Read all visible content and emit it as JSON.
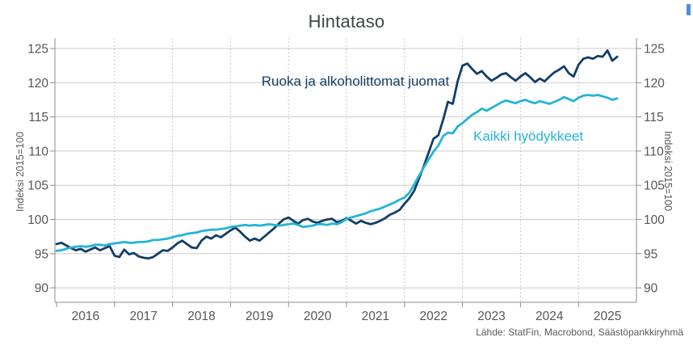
{
  "title": "Hintataso",
  "source": "Lähde: StatFin, Macrobond, Säästöpankkiryhmä",
  "y_axis_left_label": "Indeksi 2015=100",
  "y_axis_right_label": "Indeksi 2015=100",
  "colors": {
    "food_series": "#133e66",
    "all_items_series": "#24b3d6",
    "title_text": "#3f464d",
    "tick_label": "#565656",
    "axis_line": "#8c8c8c",
    "grid_horizontal": "#cbcbcb",
    "grid_vertical": "#b4b4b4",
    "edge_artifact": "#4b8fd9"
  },
  "chart_data": {
    "type": "line",
    "title": "Hintataso",
    "xlabel": "",
    "ylabel": "Indeksi 2015=100",
    "ylim": [
      87.5,
      126.5
    ],
    "y_ticks": [
      90,
      95,
      100,
      105,
      110,
      115,
      120,
      125
    ],
    "x_years": [
      2016,
      2017,
      2018,
      2019,
      2020,
      2021,
      2022,
      2023,
      2024,
      2025
    ],
    "x_start": "2016-01",
    "frequency": "monthly",
    "grid": {
      "horizontal": "solid",
      "vertical": "dotted"
    },
    "legend_position": "inline-annotations",
    "source": "Lähde: StatFin, Macrobond, Säästöpankkiryhmä",
    "series": [
      {
        "name": "Ruoka ja alkoholittomat juomat",
        "color": "#133e66",
        "values": [
          96.4,
          96.6,
          96.2,
          95.8,
          95.5,
          95.7,
          95.3,
          95.6,
          95.9,
          95.5,
          95.8,
          96.1,
          94.7,
          94.5,
          95.6,
          94.9,
          95.1,
          94.6,
          94.4,
          94.3,
          94.5,
          95.0,
          95.5,
          95.4,
          95.9,
          96.5,
          96.9,
          96.4,
          95.9,
          95.8,
          96.9,
          97.5,
          97.2,
          97.7,
          97.4,
          97.9,
          98.4,
          98.8,
          98.2,
          97.5,
          96.9,
          97.2,
          96.9,
          97.5,
          98.1,
          98.7,
          99.4,
          100.0,
          100.3,
          99.8,
          99.4,
          99.9,
          100.1,
          99.7,
          99.5,
          99.8,
          100.0,
          100.1,
          99.6,
          99.8,
          100.2,
          99.8,
          99.4,
          99.8,
          99.5,
          99.3,
          99.5,
          99.8,
          100.2,
          100.7,
          101.0,
          101.4,
          102.3,
          103.1,
          104.2,
          106.0,
          107.8,
          109.8,
          111.8,
          112.3,
          114.6,
          117.2,
          116.9,
          120.2,
          122.5,
          122.8,
          122.0,
          121.3,
          121.7,
          120.9,
          120.3,
          120.7,
          121.2,
          121.4,
          120.8,
          120.3,
          120.9,
          121.4,
          120.8,
          120.1,
          120.6,
          120.2,
          120.9,
          121.5,
          121.9,
          122.4,
          121.4,
          120.9,
          122.6,
          123.5,
          123.7,
          123.5,
          123.9,
          123.8,
          124.7,
          123.2,
          123.8
        ]
      },
      {
        "name": "Kaikki hyödykkeet",
        "color": "#24b3d6",
        "values": [
          95.4,
          95.5,
          95.7,
          95.9,
          96.0,
          96.1,
          96.0,
          96.1,
          96.3,
          96.3,
          96.2,
          96.4,
          96.5,
          96.6,
          96.7,
          96.6,
          96.6,
          96.7,
          96.7,
          96.8,
          97.0,
          97.0,
          97.1,
          97.2,
          97.4,
          97.6,
          97.7,
          97.9,
          98.0,
          98.1,
          98.3,
          98.4,
          98.5,
          98.5,
          98.6,
          98.7,
          98.9,
          99.0,
          99.1,
          99.2,
          99.1,
          99.2,
          99.1,
          99.2,
          99.3,
          99.2,
          99.1,
          99.2,
          99.3,
          99.4,
          99.2,
          98.9,
          99.0,
          99.1,
          99.3,
          99.3,
          99.2,
          99.4,
          99.3,
          99.6,
          100.1,
          100.3,
          100.5,
          100.7,
          100.9,
          101.2,
          101.4,
          101.6,
          101.9,
          102.2,
          102.5,
          102.9,
          103.2,
          103.9,
          105.1,
          106.4,
          107.6,
          108.8,
          109.9,
          110.8,
          112.2,
          112.7,
          112.6,
          113.6,
          114.1,
          114.7,
          115.3,
          115.7,
          116.2,
          115.9,
          116.3,
          116.7,
          117.1,
          117.4,
          117.2,
          117.0,
          117.3,
          117.5,
          117.2,
          117.0,
          117.3,
          117.1,
          116.9,
          117.2,
          117.5,
          117.9,
          117.6,
          117.3,
          117.8,
          118.1,
          118.2,
          118.1,
          118.2,
          118.0,
          117.8,
          117.5,
          117.7
        ]
      }
    ]
  }
}
